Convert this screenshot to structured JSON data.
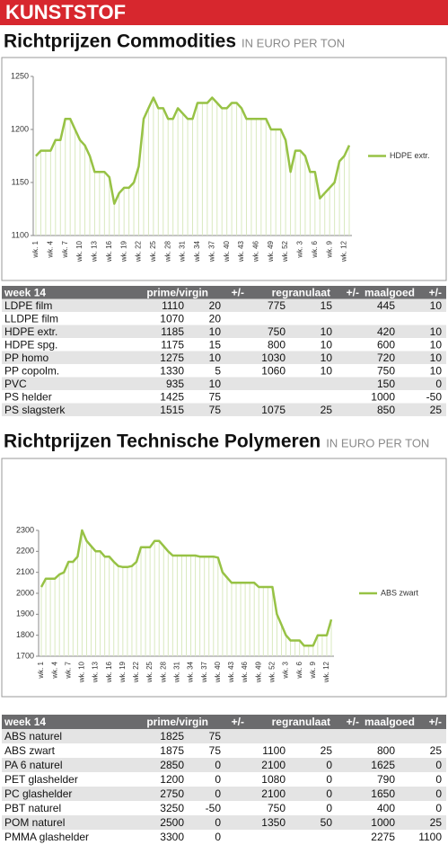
{
  "header": "KUNSTSTOF",
  "chart_data": [
    {
      "type": "line",
      "title": "Richtprijzen Commodities",
      "subtitle": "IN EURO PER TON",
      "categories": [
        "wk. 1",
        null,
        null,
        "wk. 4",
        null,
        null,
        "wk. 7",
        null,
        null,
        "wk. 10",
        null,
        null,
        "wk. 13",
        null,
        null,
        "wk. 16",
        null,
        null,
        "wk. 19",
        null,
        null,
        "wk. 22",
        null,
        null,
        "wk. 25",
        null,
        null,
        "wk. 28",
        null,
        null,
        "wk. 31",
        null,
        null,
        "wk. 34",
        null,
        null,
        "wk. 37",
        null,
        null,
        "wk. 40",
        null,
        null,
        "wk. 43",
        null,
        null,
        "wk. 46",
        null,
        null,
        "wk. 49",
        null,
        null,
        "wk. 52",
        null,
        null,
        "wk. 3",
        null,
        null,
        "wk. 6",
        null,
        null,
        "wk. 9",
        null,
        null,
        "wk. 12",
        null
      ],
      "series": [
        {
          "name": "HDPE extr.",
          "color": "#97c245",
          "values": [
            1175,
            1180,
            1180,
            1180,
            1190,
            1190,
            1210,
            1210,
            1200,
            1190,
            1185,
            1175,
            1160,
            1160,
            1160,
            1155,
            1130,
            1140,
            1145,
            1145,
            1150,
            1165,
            1210,
            1220,
            1230,
            1220,
            1220,
            1210,
            1210,
            1220,
            1215,
            1210,
            1210,
            1225,
            1225,
            1225,
            1230,
            1225,
            1220,
            1220,
            1225,
            1225,
            1220,
            1210,
            1210,
            1210,
            1210,
            1210,
            1200,
            1200,
            1200,
            1190,
            1160,
            1180,
            1180,
            1175,
            1160,
            1160,
            1135,
            1140,
            1145,
            1150,
            1170,
            1175,
            1185
          ]
        }
      ],
      "ylim": [
        1100,
        1250
      ],
      "yticks": [
        1100,
        1150,
        1200,
        1250
      ],
      "legend": "right"
    },
    {
      "type": "line",
      "title": "Richtprijzen Technische Polymeren",
      "subtitle": "IN EURO PER TON",
      "categories": [
        "wk. 1",
        null,
        null,
        "wk. 4",
        null,
        null,
        "wk. 7",
        null,
        null,
        "wk. 10",
        null,
        null,
        "wk. 13",
        null,
        null,
        "wk. 16",
        null,
        null,
        "wk. 19",
        null,
        null,
        "wk. 22",
        null,
        null,
        "wk. 25",
        null,
        null,
        "wk. 28",
        null,
        null,
        "wk. 31",
        null,
        null,
        "wk. 34",
        null,
        null,
        "wk. 37",
        null,
        null,
        "wk. 40",
        null,
        null,
        "wk. 43",
        null,
        null,
        "wk. 46",
        null,
        null,
        "wk. 49",
        null,
        null,
        "wk. 52",
        null,
        null,
        "wk. 3",
        null,
        null,
        "wk. 6",
        null,
        null,
        "wk. 9",
        null,
        null,
        "wk. 12",
        null
      ],
      "series": [
        {
          "name": "ABS zwart",
          "color": "#97c245",
          "values": [
            2030,
            2070,
            2070,
            2070,
            2090,
            2100,
            2150,
            2150,
            2175,
            2300,
            2250,
            2225,
            2200,
            2200,
            2175,
            2175,
            2150,
            2130,
            2125,
            2125,
            2130,
            2150,
            2220,
            2220,
            2220,
            2250,
            2250,
            2225,
            2200,
            2180,
            2180,
            2180,
            2180,
            2180,
            2180,
            2175,
            2175,
            2175,
            2175,
            2170,
            2100,
            2075,
            2050,
            2050,
            2050,
            2050,
            2050,
            2050,
            2030,
            2030,
            2030,
            2030,
            1900,
            1850,
            1800,
            1775,
            1775,
            1775,
            1750,
            1750,
            1750,
            1800,
            1800,
            1800,
            1875
          ]
        }
      ],
      "ylim": [
        1700,
        2300
      ],
      "yticks": [
        1700,
        1800,
        1900,
        2000,
        2100,
        2200,
        2300
      ],
      "legend": "right"
    }
  ],
  "tables": [
    {
      "columns": [
        "week 14",
        "prime/virgin",
        "+/-",
        "regranulaat",
        "+/-",
        "maalgoed",
        "+/-"
      ],
      "rows": [
        [
          "LDPE film",
          1110,
          20,
          775,
          15,
          445,
          10
        ],
        [
          "LLDPE film",
          1070,
          20,
          null,
          null,
          null,
          null
        ],
        [
          "HDPE extr.",
          1185,
          10,
          750,
          10,
          420,
          10
        ],
        [
          "HDPE spg.",
          1175,
          15,
          800,
          10,
          600,
          10
        ],
        [
          "PP homo",
          1275,
          10,
          1030,
          10,
          720,
          10
        ],
        [
          "PP copolm.",
          1330,
          5,
          1060,
          10,
          750,
          10
        ],
        [
          "PVC",
          935,
          10,
          null,
          null,
          150,
          0
        ],
        [
          "PS helder",
          1425,
          75,
          null,
          null,
          1000,
          -50
        ],
        [
          "PS slagsterk",
          1515,
          75,
          1075,
          25,
          850,
          25
        ]
      ]
    },
    {
      "columns": [
        "week 14",
        "prime/virgin",
        "+/-",
        "regranulaat",
        "+/-",
        "maalgoed",
        "+/-"
      ],
      "rows": [
        [
          "ABS naturel",
          1825,
          75,
          null,
          null,
          null,
          null
        ],
        [
          "ABS zwart",
          1875,
          75,
          1100,
          25,
          800,
          25
        ],
        [
          "PA 6 naturel",
          2850,
          0,
          2100,
          0,
          1625,
          0
        ],
        [
          "PET glashelder",
          1200,
          0,
          1080,
          0,
          790,
          0
        ],
        [
          "PC glashelder",
          2750,
          0,
          2100,
          0,
          1650,
          0
        ],
        [
          "PBT naturel",
          3250,
          -50,
          750,
          0,
          400,
          0
        ],
        [
          "POM naturel",
          2500,
          0,
          1350,
          50,
          1000,
          25
        ],
        [
          "PMMA glashelder",
          3300,
          0,
          null,
          null,
          2275,
          1100
        ]
      ]
    }
  ]
}
